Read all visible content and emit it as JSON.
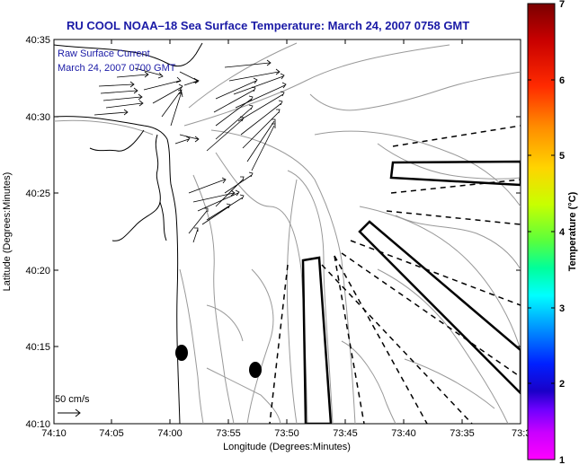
{
  "title": "RU COOL  NOAA–18  Sea Surface Temperature:  March 24, 2007 0758 GMT",
  "legend": {
    "line1": "Raw Surface Current",
    "line2": "March 24, 2007 0700 GMT",
    "scale_label": "50 cm/s"
  },
  "axes": {
    "xlabel": "Longitude (Degrees:Minutes)",
    "ylabel": "Latitude (Degrees:Minutes)",
    "xticks": [
      "74:10",
      "74:05",
      "74:00",
      "73:55",
      "73:50",
      "73:45",
      "73:40",
      "73:35",
      "73:3"
    ],
    "yticks": [
      "40:35",
      "40:30",
      "40:25",
      "40:20",
      "40:15",
      "40:10"
    ]
  },
  "colorbar": {
    "label": "Temperature (°C)",
    "ticks": [
      "7",
      "6",
      "5",
      "4",
      "3",
      "2",
      "1"
    ],
    "colors": [
      "#7a0000",
      "#c80000",
      "#ff2a00",
      "#ff8c00",
      "#ffd400",
      "#c8ff00",
      "#5aff3c",
      "#00ff9b",
      "#00ffff",
      "#0096ff",
      "#0020ff",
      "#1a00c8",
      "#6e00ff",
      "#c800ff",
      "#ff00ff"
    ]
  },
  "map": {
    "land_color": "#ffffff",
    "contour_color": "#999999",
    "arrow_color": "#000000"
  }
}
